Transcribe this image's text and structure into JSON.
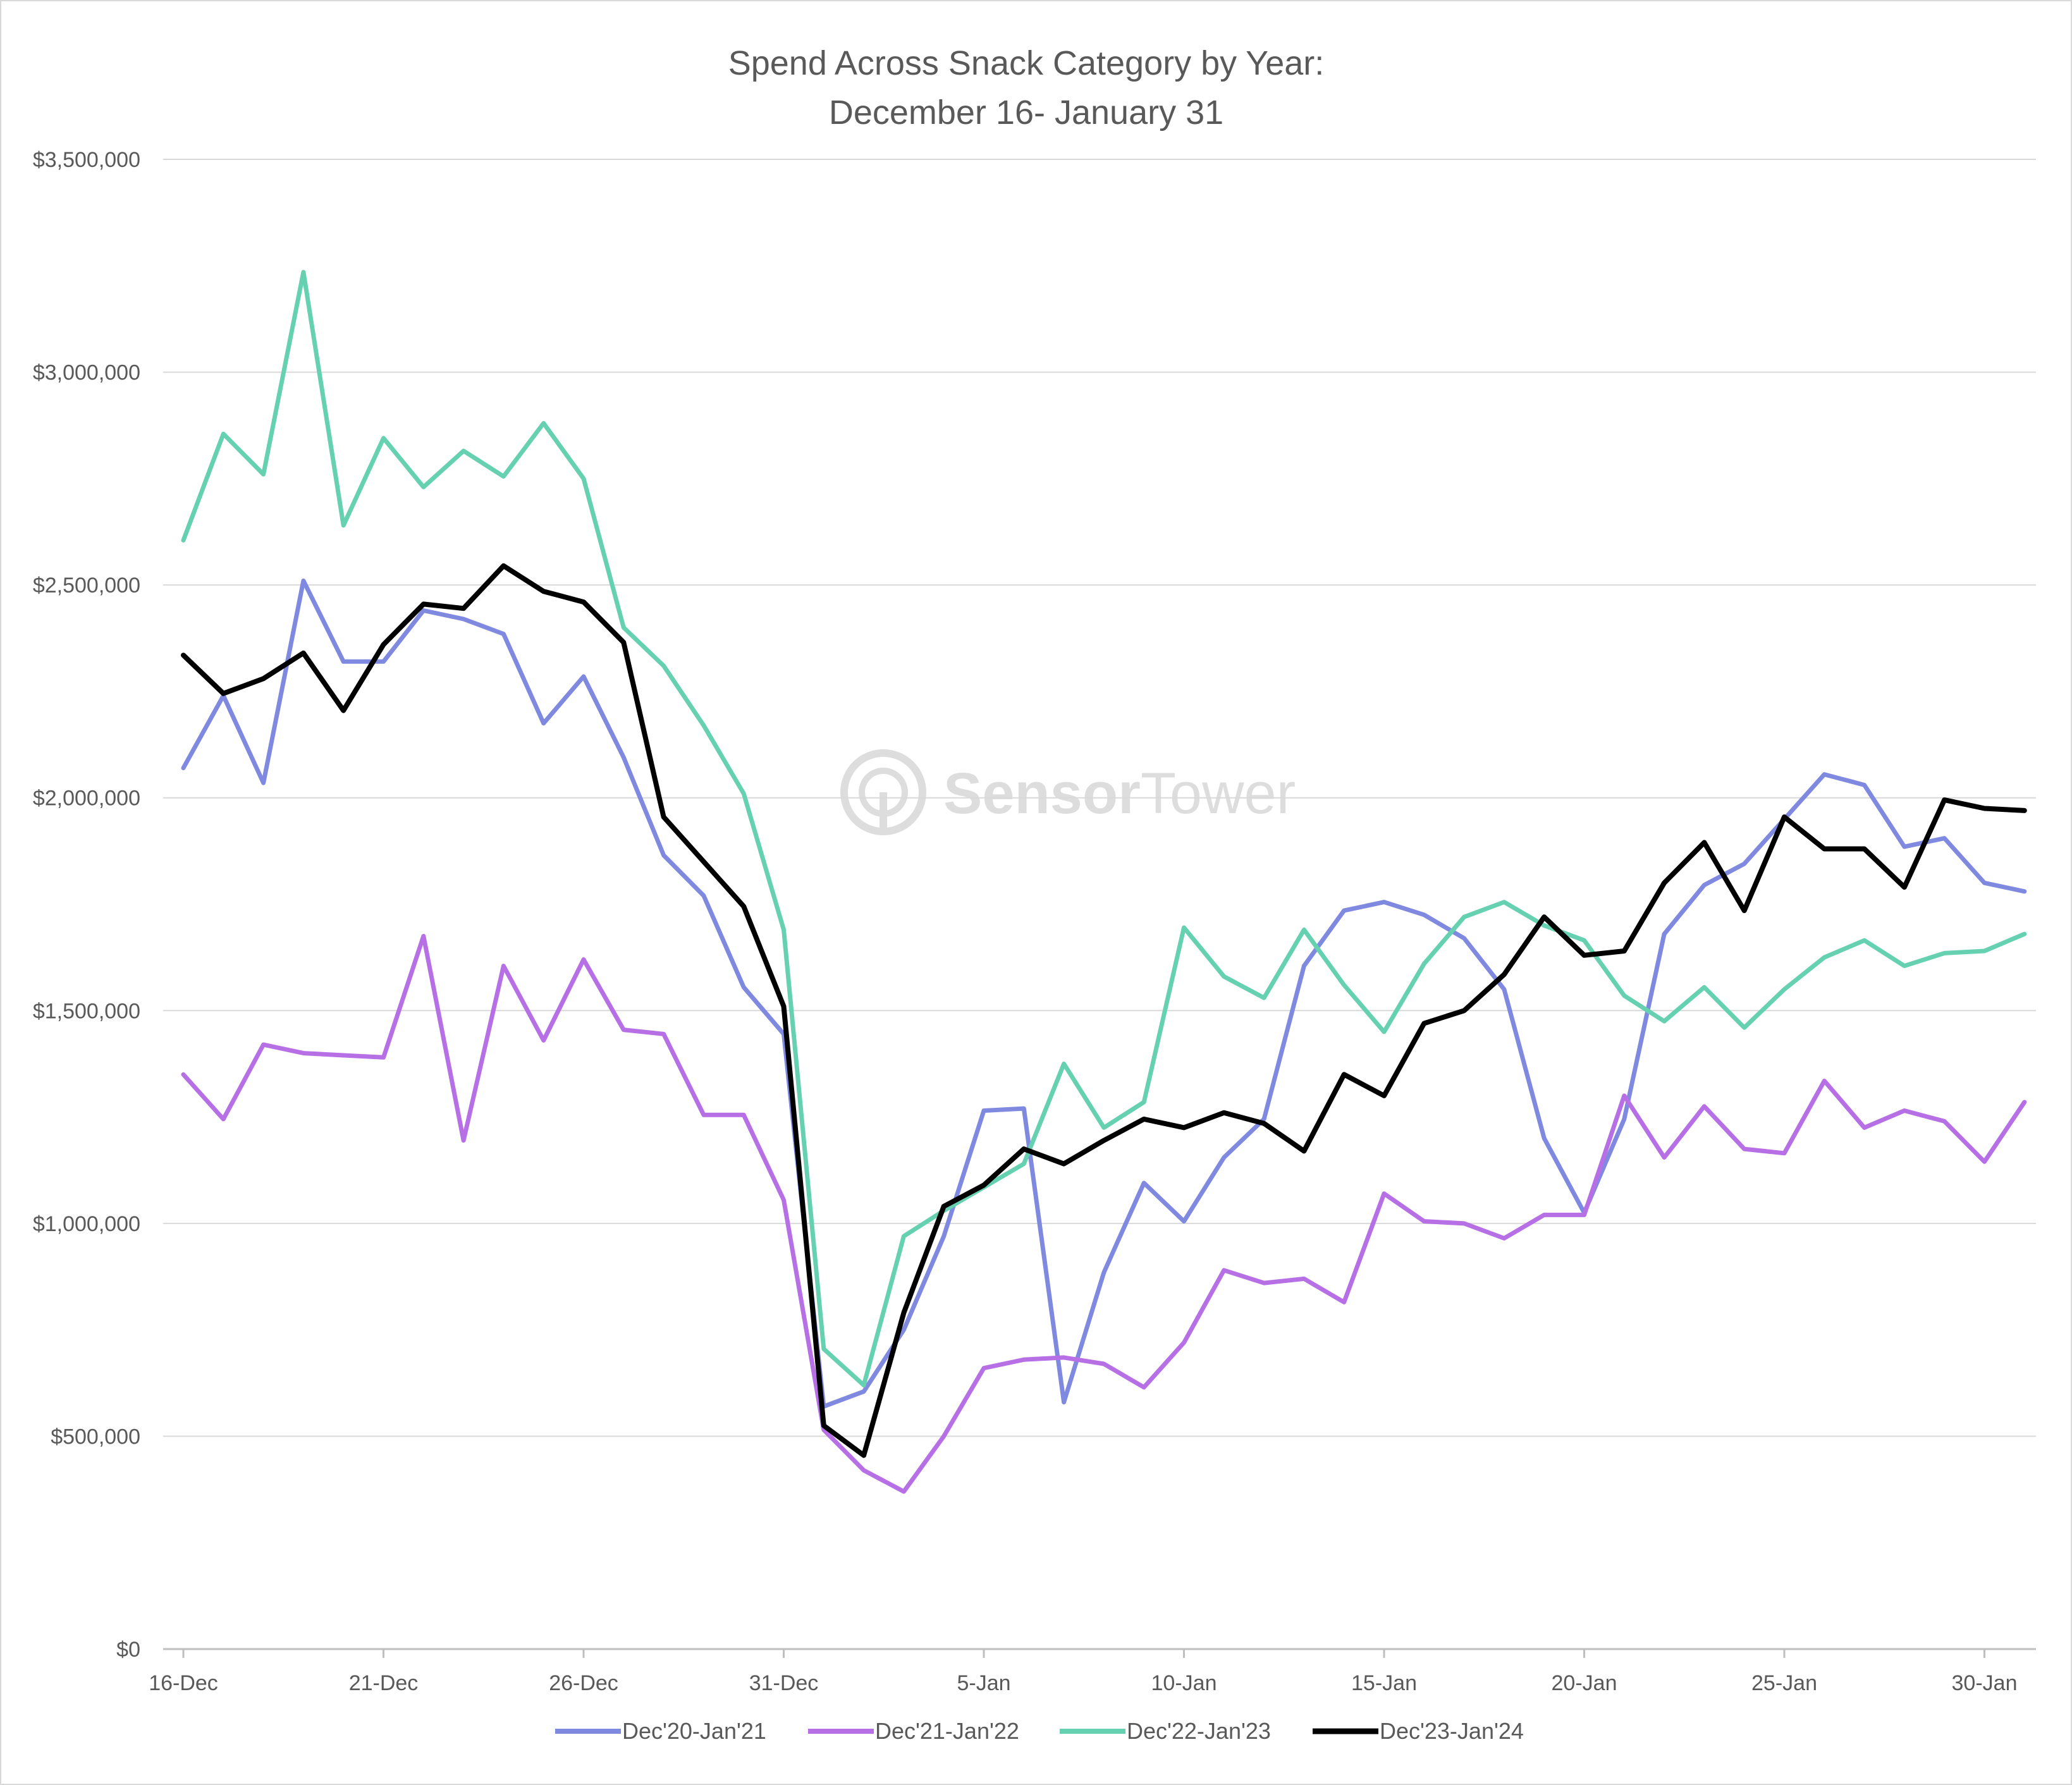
{
  "chart_data": {
    "type": "line",
    "title": [
      "Spend Across Snack Category by Year:",
      "December 16- January 31"
    ],
    "watermark": {
      "bold": "Sensor",
      "light": "Tower"
    },
    "xlabel": "",
    "ylabel": "",
    "ylim": [
      0,
      3500000
    ],
    "y_ticks": [
      0,
      500000,
      1000000,
      1500000,
      2000000,
      2500000,
      3000000,
      3500000
    ],
    "y_tick_labels": [
      "$0",
      "$500,000",
      "$1,000,000",
      "$1,500,000",
      "$2,000,000",
      "$2,500,000",
      "$3,000,000",
      "$3,500,000"
    ],
    "x_tick_labels": [
      {
        "index": 0,
        "label": "16-Dec"
      },
      {
        "index": 5,
        "label": "21-Dec"
      },
      {
        "index": 10,
        "label": "26-Dec"
      },
      {
        "index": 15,
        "label": "31-Dec"
      },
      {
        "index": 20,
        "label": "5-Jan"
      },
      {
        "index": 25,
        "label": "10-Jan"
      },
      {
        "index": 30,
        "label": "15-Jan"
      },
      {
        "index": 35,
        "label": "20-Jan"
      },
      {
        "index": 40,
        "label": "25-Jan"
      },
      {
        "index": 45,
        "label": "30-Jan"
      }
    ],
    "grid": true,
    "legend_position": "bottom",
    "series": [
      {
        "name": "Dec'20-Jan'21",
        "color": "#7f89e0",
        "values": [
          2070000,
          2240000,
          2035000,
          2510000,
          2320000,
          2320000,
          2440000,
          2420000,
          2385000,
          2175000,
          2285000,
          2095000,
          1865000,
          1770000,
          1555000,
          1445000,
          570000,
          605000,
          750000,
          970000,
          1265000,
          1270000,
          580000,
          885000,
          1095000,
          1005000,
          1155000,
          1245000,
          1605000,
          1735000,
          1755000,
          1725000,
          1670000,
          1550000,
          1200000,
          1025000,
          1245000,
          1680000,
          1795000,
          1845000,
          1950000,
          2055000,
          2030000,
          1885000,
          1905000,
          1800000,
          1780000
        ]
      },
      {
        "name": "Dec'21-Jan'22",
        "color": "#b76fe6",
        "values": [
          1350000,
          1245000,
          1420000,
          1400000,
          1395000,
          1390000,
          1675000,
          1195000,
          1605000,
          1430000,
          1620000,
          1455000,
          1445000,
          1255000,
          1255000,
          1055000,
          515000,
          420000,
          370000,
          500000,
          660000,
          680000,
          685000,
          670000,
          615000,
          720000,
          890000,
          860000,
          870000,
          815000,
          1070000,
          1005000,
          1000000,
          965000,
          1020000,
          1020000,
          1300000,
          1155000,
          1275000,
          1175000,
          1165000,
          1335000,
          1225000,
          1265000,
          1240000,
          1145000,
          1285000
        ]
      },
      {
        "name": "Dec'22-Jan'23",
        "color": "#66d1b0",
        "values": [
          2605000,
          2855000,
          2760000,
          3235000,
          2640000,
          2845000,
          2730000,
          2815000,
          2755000,
          2880000,
          2750000,
          2400000,
          2310000,
          2170000,
          2010000,
          1690000,
          705000,
          620000,
          970000,
          1030000,
          1085000,
          1140000,
          1375000,
          1225000,
          1285000,
          1695000,
          1580000,
          1530000,
          1690000,
          1560000,
          1450000,
          1610000,
          1720000,
          1755000,
          1700000,
          1665000,
          1535000,
          1475000,
          1555000,
          1460000,
          1550000,
          1625000,
          1665000,
          1605000,
          1635000,
          1640000,
          1680000
        ]
      },
      {
        "name": "Dec'23-Jan'24",
        "color": "#000000",
        "values": [
          2335000,
          2245000,
          2280000,
          2340000,
          2205000,
          2360000,
          2455000,
          2445000,
          2545000,
          2485000,
          2460000,
          2365000,
          1955000,
          1850000,
          1745000,
          1510000,
          525000,
          455000,
          790000,
          1040000,
          1090000,
          1175000,
          1140000,
          1195000,
          1245000,
          1225000,
          1260000,
          1235000,
          1170000,
          1350000,
          1300000,
          1470000,
          1500000,
          1585000,
          1720000,
          1630000,
          1640000,
          1800000,
          1895000,
          1735000,
          1955000,
          1880000,
          1880000,
          1790000,
          1995000,
          1975000,
          1970000
        ]
      }
    ]
  }
}
